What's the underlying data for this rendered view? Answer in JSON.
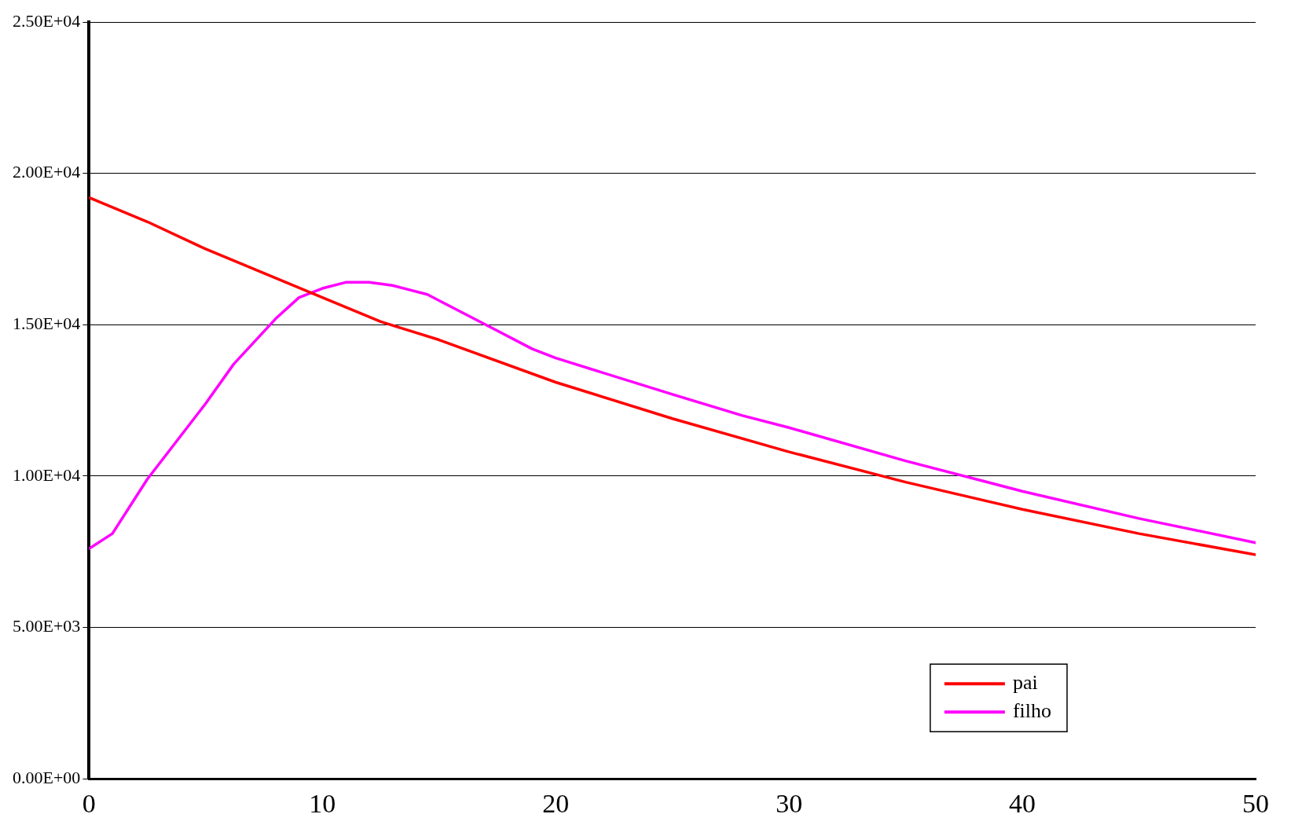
{
  "chart_data": {
    "type": "line",
    "xlim": [
      0,
      50
    ],
    "xticks": [
      0,
      10,
      20,
      30,
      40,
      50
    ],
    "ylim": [
      0,
      25000
    ],
    "yticks": [
      {
        "value": 0,
        "label": "0.00E+00"
      },
      {
        "value": 5000,
        "label": "5.00E+03"
      },
      {
        "value": 10000,
        "label": "1.00E+04"
      },
      {
        "value": 15000,
        "label": "1.50E+04"
      },
      {
        "value": 20000,
        "label": "2.00E+04"
      },
      {
        "value": 25000,
        "label": "2.50E+04"
      }
    ],
    "grid": "y",
    "legend": "bottom right",
    "marker": "none",
    "line_style": "solid",
    "series": [
      {
        "name": "pai",
        "color": "#ff0000",
        "x": [
          0,
          2.5,
          5,
          10,
          12.5,
          15,
          20,
          25,
          30,
          35,
          40,
          45,
          50
        ],
        "values": [
          19200,
          18400,
          17500,
          15900,
          15100,
          14500,
          13100,
          11900,
          10800,
          9800,
          8900,
          8100,
          7400
        ]
      },
      {
        "name": "filho",
        "color": "#ff00ff",
        "x": [
          0,
          1,
          2.5,
          4,
          5,
          6.2,
          8,
          9,
          10,
          11,
          12,
          13,
          14.5,
          15,
          17,
          19,
          20,
          25,
          28,
          30,
          35,
          40,
          45,
          50
        ],
        "values": [
          7600,
          8100,
          9900,
          11400,
          12400,
          13700,
          15200,
          15900,
          16200,
          16400,
          16400,
          16300,
          16000,
          15800,
          15000,
          14200,
          13900,
          12700,
          12000,
          11600,
          10500,
          9500,
          8600,
          7800
        ]
      }
    ]
  }
}
